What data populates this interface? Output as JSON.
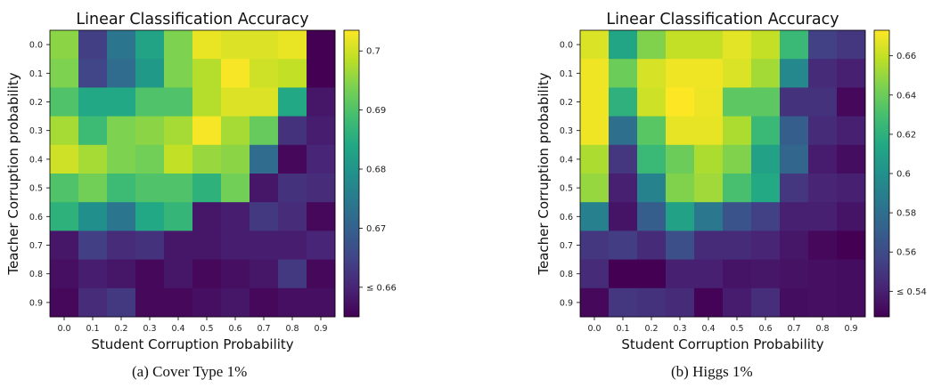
{
  "captions": [
    "(a) Cover Type 1%",
    "(b) Higgs 1%"
  ],
  "chart_data": [
    {
      "type": "heatmap",
      "title": "Linear Classification Accuracy",
      "xlabel": "Student Corruption Probability",
      "ylabel": "Teacher Corruption probability",
      "x_categories": [
        "0.0",
        "0.1",
        "0.2",
        "0.3",
        "0.4",
        "0.5",
        "0.6",
        "0.7",
        "0.8",
        "0.9"
      ],
      "y_categories": [
        "0.0",
        "0.1",
        "0.2",
        "0.3",
        "0.4",
        "0.5",
        "0.6",
        "0.7",
        "0.8",
        "0.9"
      ],
      "colorscale": "viridis",
      "vmin": 0.655,
      "vmax": 0.7035,
      "colorbar_ticks": [
        {
          "value": 0.7,
          "label": "0.7"
        },
        {
          "value": 0.69,
          "label": "0.69"
        },
        {
          "value": 0.68,
          "label": "0.68"
        },
        {
          "value": 0.67,
          "label": "0.67"
        },
        {
          "value": 0.66,
          "label": "≤ 0.66"
        }
      ],
      "values": [
        [
          0.695,
          0.664,
          0.674,
          0.683,
          0.694,
          0.702,
          0.701,
          0.701,
          0.702,
          0.655
        ],
        [
          0.694,
          0.665,
          0.672,
          0.681,
          0.694,
          0.698,
          0.703,
          0.7,
          0.699,
          0.655
        ],
        [
          0.69,
          0.684,
          0.684,
          0.69,
          0.69,
          0.698,
          0.701,
          0.701,
          0.684,
          0.658
        ],
        [
          0.697,
          0.688,
          0.694,
          0.695,
          0.697,
          0.703,
          0.697,
          0.692,
          0.662,
          0.659
        ],
        [
          0.7,
          0.697,
          0.694,
          0.693,
          0.699,
          0.696,
          0.695,
          0.672,
          0.656,
          0.66
        ],
        [
          0.69,
          0.693,
          0.688,
          0.69,
          0.69,
          0.686,
          0.693,
          0.658,
          0.662,
          0.661
        ],
        [
          0.686,
          0.679,
          0.674,
          0.684,
          0.687,
          0.658,
          0.659,
          0.663,
          0.661,
          0.656
        ],
        [
          0.658,
          0.664,
          0.661,
          0.662,
          0.658,
          0.658,
          0.659,
          0.659,
          0.659,
          0.66
        ],
        [
          0.657,
          0.659,
          0.658,
          0.656,
          0.658,
          0.656,
          0.657,
          0.658,
          0.663,
          0.656
        ],
        [
          0.656,
          0.661,
          0.663,
          0.656,
          0.656,
          0.657,
          0.658,
          0.656,
          0.657,
          0.657
        ]
      ]
    },
    {
      "type": "heatmap",
      "title": "Linear Classification Accuracy",
      "xlabel": "Student Corruption Probability",
      "ylabel": "Teacher Corruption probability",
      "x_categories": [
        "0.0",
        "0.1",
        "0.2",
        "0.3",
        "0.4",
        "0.5",
        "0.6",
        "0.7",
        "0.8",
        "0.9"
      ],
      "y_categories": [
        "0.0",
        "0.1",
        "0.2",
        "0.3",
        "0.4",
        "0.5",
        "0.6",
        "0.7",
        "0.8",
        "0.9"
      ],
      "colorscale": "viridis",
      "vmin": 0.527,
      "vmax": 0.673,
      "colorbar_ticks": [
        {
          "value": 0.66,
          "label": "0.66"
        },
        {
          "value": 0.64,
          "label": "0.64"
        },
        {
          "value": 0.62,
          "label": "0.62"
        },
        {
          "value": 0.6,
          "label": "0.6"
        },
        {
          "value": 0.58,
          "label": "0.58"
        },
        {
          "value": 0.56,
          "label": "0.56"
        },
        {
          "value": 0.54,
          "label": "≤ 0.54"
        }
      ],
      "values": [
        [
          0.665,
          0.613,
          0.645,
          0.66,
          0.66,
          0.667,
          0.66,
          0.625,
          0.555,
          0.55
        ],
        [
          0.67,
          0.64,
          0.664,
          0.67,
          0.67,
          0.665,
          0.653,
          0.595,
          0.545,
          0.54
        ],
        [
          0.67,
          0.62,
          0.662,
          0.673,
          0.669,
          0.636,
          0.636,
          0.548,
          0.548,
          0.53
        ],
        [
          0.67,
          0.58,
          0.635,
          0.668,
          0.668,
          0.655,
          0.625,
          0.57,
          0.545,
          0.54
        ],
        [
          0.655,
          0.55,
          0.625,
          0.64,
          0.655,
          0.645,
          0.61,
          0.575,
          0.538,
          0.532
        ],
        [
          0.65,
          0.54,
          0.592,
          0.645,
          0.652,
          0.63,
          0.615,
          0.55,
          0.542,
          0.54
        ],
        [
          0.59,
          0.535,
          0.57,
          0.61,
          0.585,
          0.565,
          0.555,
          0.54,
          0.54,
          0.535
        ],
        [
          0.55,
          0.553,
          0.545,
          0.562,
          0.545,
          0.545,
          0.542,
          0.536,
          0.53,
          0.527
        ],
        [
          0.545,
          0.527,
          0.527,
          0.54,
          0.54,
          0.535,
          0.536,
          0.534,
          0.533,
          0.532
        ],
        [
          0.53,
          0.55,
          0.548,
          0.545,
          0.528,
          0.538,
          0.546,
          0.532,
          0.533,
          0.532
        ]
      ]
    }
  ]
}
